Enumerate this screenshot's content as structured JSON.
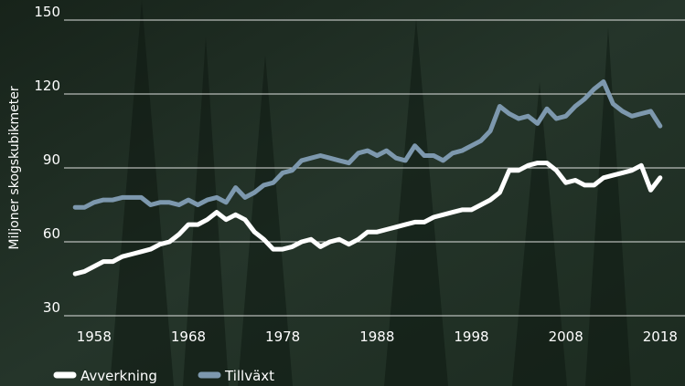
{
  "chart_data": {
    "type": "line",
    "y_label": "Miljoner skogskubikmeter",
    "x": [
      1956,
      1957,
      1958,
      1959,
      1960,
      1961,
      1962,
      1963,
      1964,
      1965,
      1966,
      1967,
      1968,
      1969,
      1970,
      1971,
      1972,
      1973,
      1974,
      1975,
      1976,
      1977,
      1978,
      1979,
      1980,
      1981,
      1982,
      1983,
      1984,
      1985,
      1986,
      1987,
      1988,
      1989,
      1990,
      1991,
      1992,
      1993,
      1994,
      1995,
      1996,
      1997,
      1998,
      1999,
      2000,
      2001,
      2002,
      2003,
      2004,
      2005,
      2006,
      2007,
      2008,
      2009,
      2010,
      2011,
      2012,
      2013,
      2014,
      2015,
      2016,
      2017,
      2018
    ],
    "series": [
      {
        "name": "Avverkning",
        "color": "#ffffff",
        "values": [
          47,
          48,
          50,
          52,
          52,
          54,
          55,
          56,
          57,
          59,
          60,
          63,
          67,
          67,
          69,
          72,
          69,
          71,
          69,
          64,
          61,
          57,
          57,
          58,
          60,
          61,
          58,
          60,
          61,
          59,
          61,
          64,
          64,
          65,
          66,
          67,
          68,
          68,
          70,
          71,
          72,
          73,
          73,
          75,
          77,
          80,
          89,
          89,
          91,
          92,
          92,
          89,
          84,
          85,
          83,
          83,
          86,
          87,
          88,
          89,
          91,
          81,
          86
        ]
      },
      {
        "name": "Tillväxt",
        "color": "#7d98ae",
        "values": [
          74,
          74,
          76,
          77,
          77,
          78,
          78,
          78,
          75,
          76,
          76,
          75,
          77,
          75,
          77,
          78,
          76,
          82,
          78,
          80,
          83,
          84,
          88,
          89,
          93,
          94,
          95,
          94,
          93,
          92,
          96,
          97,
          95,
          97,
          94,
          93,
          99,
          95,
          95,
          93,
          96,
          97,
          99,
          101,
          105,
          115,
          112,
          110,
          111,
          108,
          114,
          110,
          111,
          115,
          118,
          122,
          125,
          116,
          113,
          111,
          112,
          113,
          107
        ]
      }
    ],
    "xlim": [
      1955.5,
      2018.5
    ],
    "xticks": [
      1958,
      1968,
      1978,
      1988,
      1998,
      2008,
      2018
    ],
    "ylim": [
      30,
      150
    ],
    "yticks": [
      30,
      60,
      90,
      120,
      150
    ],
    "grid": true
  }
}
